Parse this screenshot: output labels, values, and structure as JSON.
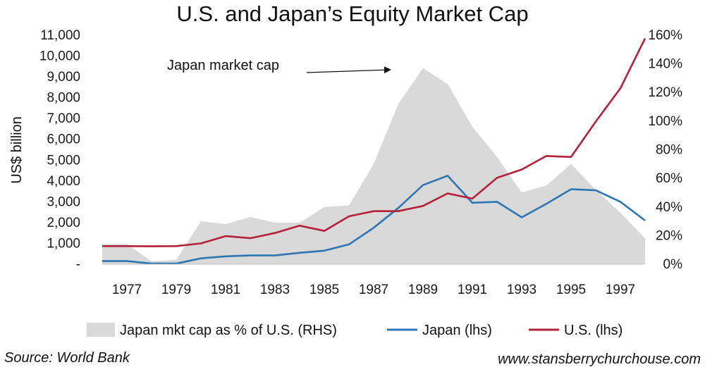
{
  "chart_data": {
    "type": "area",
    "title": "U.S. and Japan’s Equity Market Cap",
    "ylabel": "US$ billion",
    "y_left": {
      "ylim": [
        0,
        11000
      ],
      "ticks": [
        "-",
        "1,000",
        "2,000",
        "3,000",
        "4,000",
        "5,000",
        "6,000",
        "7,000",
        "8,000",
        "9,000",
        "10,000",
        "11,000"
      ]
    },
    "y_right": {
      "ylim": [
        0,
        1.6
      ],
      "ticks": [
        "0%",
        "20%",
        "40%",
        "60%",
        "80%",
        "100%",
        "120%",
        "140%",
        "160%"
      ]
    },
    "x": [
      1976,
      1977,
      1978,
      1979,
      1980,
      1981,
      1982,
      1983,
      1984,
      1985,
      1986,
      1987,
      1988,
      1989,
      1990,
      1991,
      1992,
      1993,
      1994,
      1995,
      1996,
      1997,
      1998
    ],
    "x_tick_labels": [
      "1977",
      "1979",
      "1981",
      "1983",
      "1985",
      "1987",
      "1989",
      "1991",
      "1993",
      "1995",
      "1997"
    ],
    "grid": false,
    "legend_position": "bottom",
    "series": [
      {
        "name": "Japan mkt cap as % of U.S. (RHS)",
        "kind": "area",
        "axis": "right",
        "color": "#d9d9d9",
        "values": [
          0.14,
          0.14,
          0.02,
          0.03,
          0.3,
          0.28,
          0.33,
          0.29,
          0.29,
          0.4,
          0.41,
          0.7,
          1.12,
          1.37,
          1.26,
          0.96,
          0.75,
          0.5,
          0.55,
          0.7,
          0.52,
          0.36,
          0.18
        ]
      },
      {
        "name": "Japan (lhs)",
        "kind": "line",
        "axis": "left",
        "color": "#2e75b6",
        "values": [
          150,
          150,
          30,
          30,
          280,
          380,
          420,
          420,
          550,
          650,
          950,
          1750,
          2700,
          3800,
          4250,
          2950,
          3000,
          2250,
          2900,
          3600,
          3550,
          3000,
          2100
        ]
      },
      {
        "name": "U.S. (lhs)",
        "kind": "line",
        "axis": "left",
        "color": "#b5203a",
        "values": [
          870,
          870,
          860,
          870,
          1000,
          1350,
          1250,
          1500,
          1850,
          1600,
          2300,
          2550,
          2550,
          2800,
          3400,
          3150,
          4150,
          4550,
          5200,
          5150,
          6850,
          8450,
          10850
        ]
      }
    ],
    "annotations": [
      {
        "text": "Japan market cap",
        "points_to": {
          "x": 1988.9,
          "y": 1.34
        }
      }
    ]
  },
  "footer": {
    "source": "Source: World Bank",
    "website": "www.stansberrychurchouse.com"
  }
}
